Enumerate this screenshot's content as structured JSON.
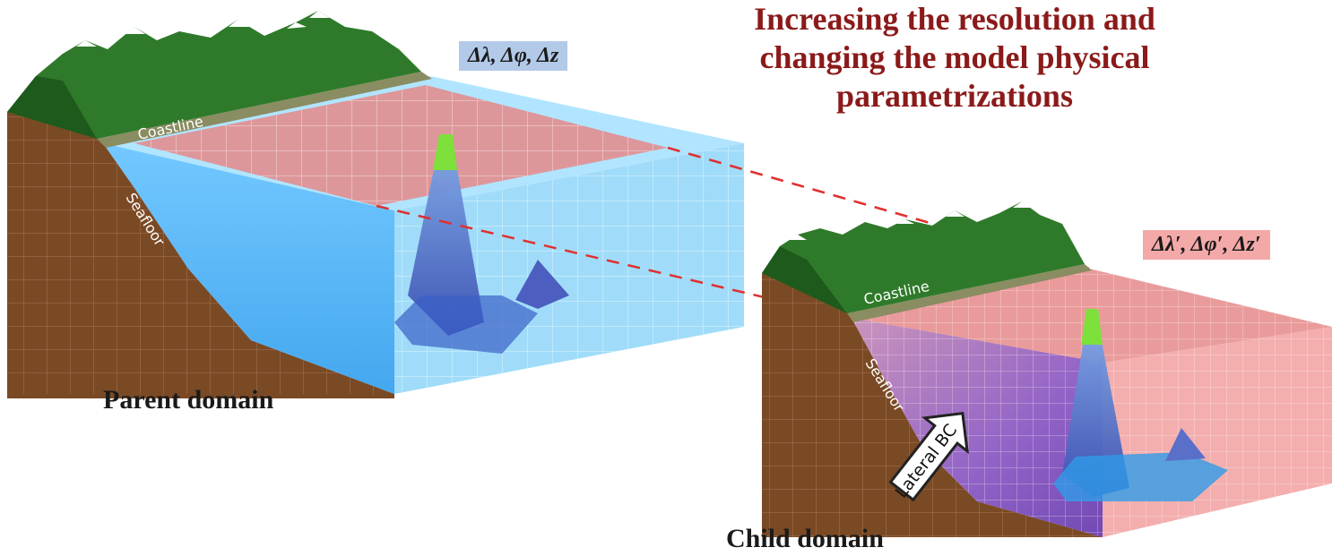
{
  "headline": {
    "lines": [
      "Increasing the resolution and",
      "changing the model physical",
      "parametrizations"
    ],
    "color": "#8b1a1a"
  },
  "parent": {
    "caption": "Parent domain",
    "resolution": "Δλ, Δφ, Δz",
    "resolution_bg": "#b3c9e8",
    "coastline_label": "Coastline",
    "seafloor_label": "Seafloor"
  },
  "child": {
    "caption": "Child domain",
    "resolution": "Δλ′, Δφ′, Δz′",
    "resolution_bg": "#f4a9a9",
    "coastline_label": "Coastline",
    "seafloor_label": "Seafloor",
    "arrow_label": "Lateral BC"
  },
  "colors": {
    "water": "#2f9be8",
    "land": "#7a4a25",
    "mountain": "#2f7a2a",
    "grid_highlight": "#e58a8a",
    "nest_line": "#e03030"
  }
}
